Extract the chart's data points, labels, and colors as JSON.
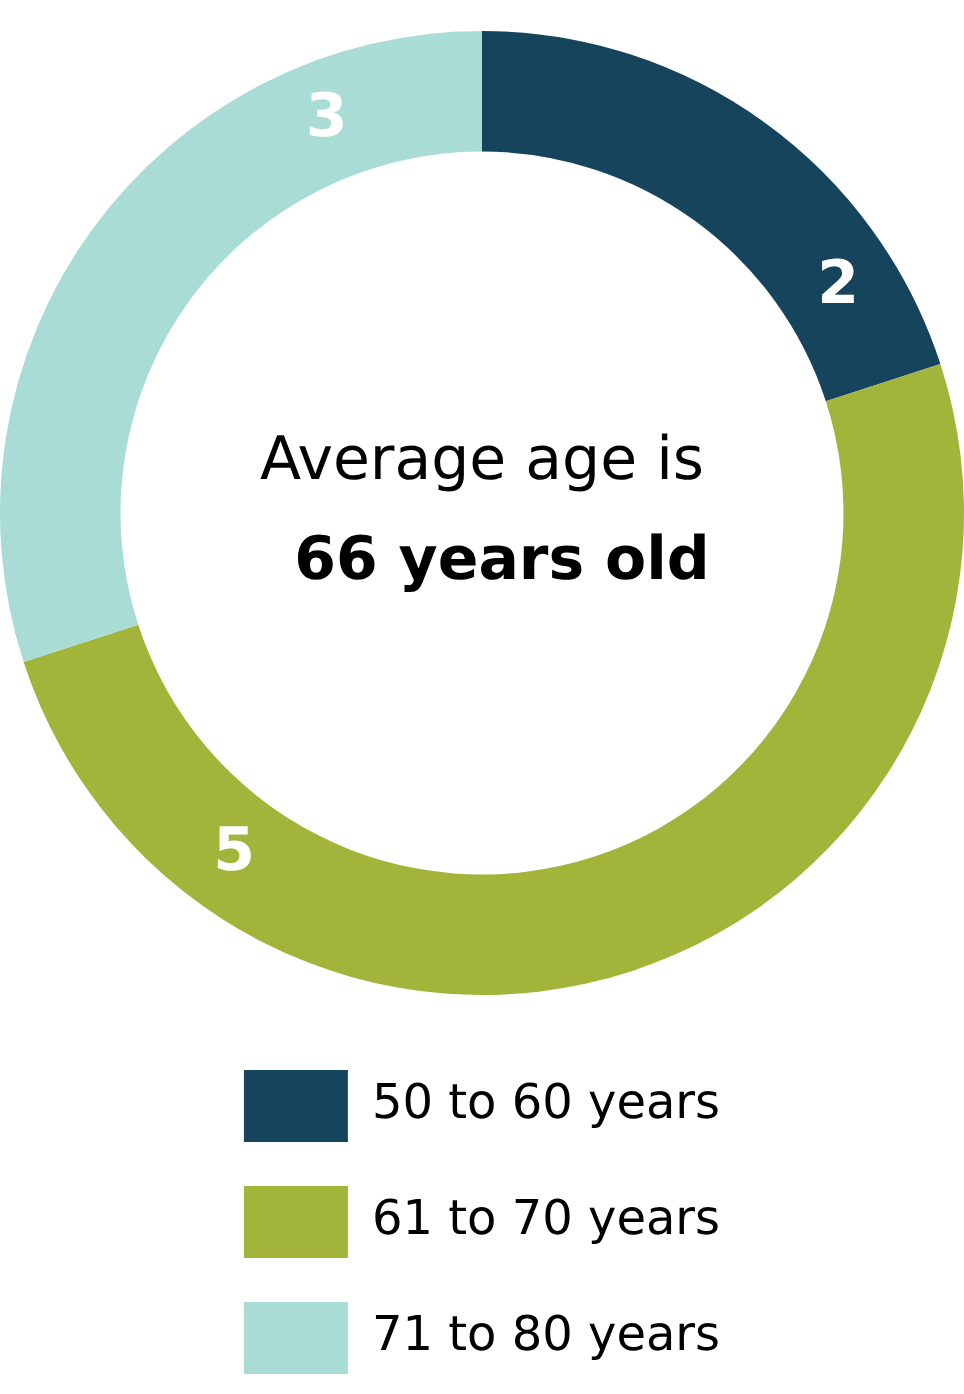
{
  "chart_data": {
    "type": "donut",
    "categories": [
      "50 to 60 years",
      "61 to 70 years",
      "71 to 80 years"
    ],
    "values": [
      2,
      5,
      3
    ],
    "colors": [
      "#15445c",
      "#a2b53a",
      "#a8dcd4"
    ],
    "annotations": [
      "Average age is",
      "66 years old"
    ],
    "data_labels": true,
    "legend": "bottom"
  }
}
